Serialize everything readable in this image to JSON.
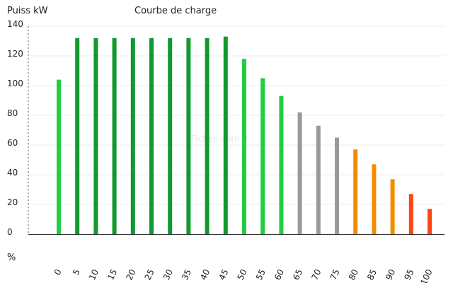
{
  "chart_data": {
    "type": "bar",
    "title": "Courbe de charge",
    "ylabel": "Puiss kW",
    "xlabel": "%",
    "categories": [
      "0",
      "5",
      "10",
      "15",
      "20",
      "25",
      "30",
      "35",
      "40",
      "45",
      "50",
      "55",
      "60",
      "65",
      "70",
      "75",
      "80",
      "85",
      "90",
      "95",
      "100"
    ],
    "values": [
      104,
      132,
      132,
      132,
      132,
      132,
      132,
      132,
      132,
      133,
      118,
      105,
      93,
      82,
      73,
      65,
      57,
      47,
      37,
      27,
      17
    ],
    "colors": [
      "#22cc44",
      "#11992f",
      "#11992f",
      "#11992f",
      "#11992f",
      "#11992f",
      "#11992f",
      "#11992f",
      "#11992f",
      "#11992f",
      "#22cc44",
      "#22cc44",
      "#22cc44",
      "#999999",
      "#999999",
      "#999999",
      "#f28c00",
      "#f28c00",
      "#f28c00",
      "#ff4411",
      "#ff4411"
    ],
    "yticks": [
      0,
      20,
      40,
      60,
      80,
      100,
      120,
      140
    ],
    "ylim": [
      0,
      140
    ],
    "grid": true
  },
  "watermark": "Fiches-auto.fr"
}
